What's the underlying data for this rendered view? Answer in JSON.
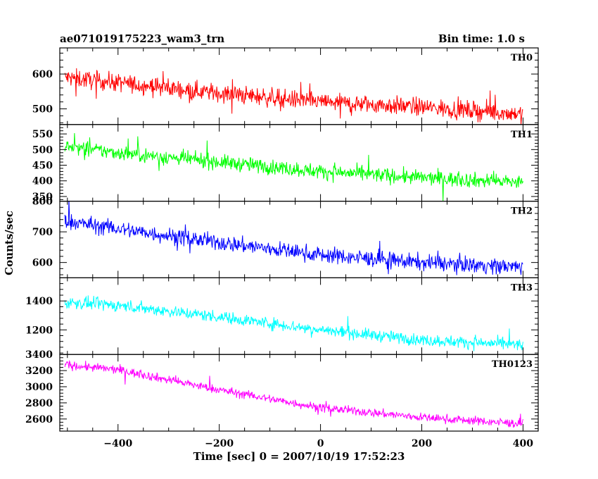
{
  "chart_data": {
    "type": "line",
    "title_left": "ae071019175223_wam3_trn",
    "title_right": "Bin time: 1.0 s",
    "xlabel": "Time [sec] 0 = 2007/10/19 17:52:23",
    "ylabel": "Counts/sec",
    "xlim": [
      -515,
      430
    ],
    "xticks": [
      -400,
      -200,
      0,
      200,
      400
    ],
    "grid": false,
    "panels": [
      {
        "name": "TH0",
        "color": "#ff0000",
        "ylim": [
          455,
          675
        ],
        "yticks": [
          500,
          600
        ],
        "x_range": [
          -505,
          400
        ],
        "trend": [
          [
            -505,
            590
          ],
          [
            -400,
            575
          ],
          [
            -200,
            545
          ],
          [
            0,
            520
          ],
          [
            200,
            505
          ],
          [
            400,
            485
          ]
        ],
        "noise_amplitude": 22
      },
      {
        "name": "TH1",
        "color": "#00ff00",
        "ylim": [
          335,
          580
        ],
        "yticks": [
          350,
          400,
          450,
          500,
          550
        ],
        "tick_labels": [
          "350",
          "400",
          "450",
          "500",
          "550"
        ],
        "x_range": [
          -505,
          400
        ],
        "trend": [
          [
            -505,
            510
          ],
          [
            -400,
            490
          ],
          [
            -200,
            460
          ],
          [
            0,
            430
          ],
          [
            200,
            410
          ],
          [
            400,
            395
          ]
        ],
        "noise_amplitude": 20
      },
      {
        "name": "TH2",
        "color": "#0000ff",
        "ylim": [
          550,
          800
        ],
        "yticks": [
          600,
          700,
          800
        ],
        "tick_labels": [
          "600",
          "700",
          "800"
        ],
        "x_range": [
          -505,
          400
        ],
        "trend": [
          [
            -505,
            735
          ],
          [
            -400,
            710
          ],
          [
            -200,
            665
          ],
          [
            0,
            625
          ],
          [
            200,
            600
          ],
          [
            400,
            585
          ]
        ],
        "noise_amplitude": 22
      },
      {
        "name": "TH3",
        "color": "#00ffff",
        "ylim": [
          1030,
          1560
        ],
        "yticks": [
          1200,
          1400
        ],
        "x_range": [
          -505,
          400
        ],
        "trend": [
          [
            -505,
            1390
          ],
          [
            -400,
            1370
          ],
          [
            -200,
            1290
          ],
          [
            0,
            1200
          ],
          [
            200,
            1130
          ],
          [
            400,
            1095
          ]
        ],
        "noise_amplitude": 35
      },
      {
        "name": "TH0123",
        "color": "#ff00ff",
        "ylim": [
          2450,
          3400
        ],
        "yticks": [
          2600,
          2800,
          3000,
          3200,
          3400
        ],
        "tick_labels": [
          "2600",
          "2800",
          "3000",
          "3200",
          "3400"
        ],
        "x_range": [
          -505,
          400
        ],
        "trend": [
          [
            -505,
            3270
          ],
          [
            -400,
            3210
          ],
          [
            -200,
            2960
          ],
          [
            0,
            2740
          ],
          [
            200,
            2620
          ],
          [
            400,
            2540
          ]
        ],
        "noise_amplitude": 45
      }
    ]
  }
}
